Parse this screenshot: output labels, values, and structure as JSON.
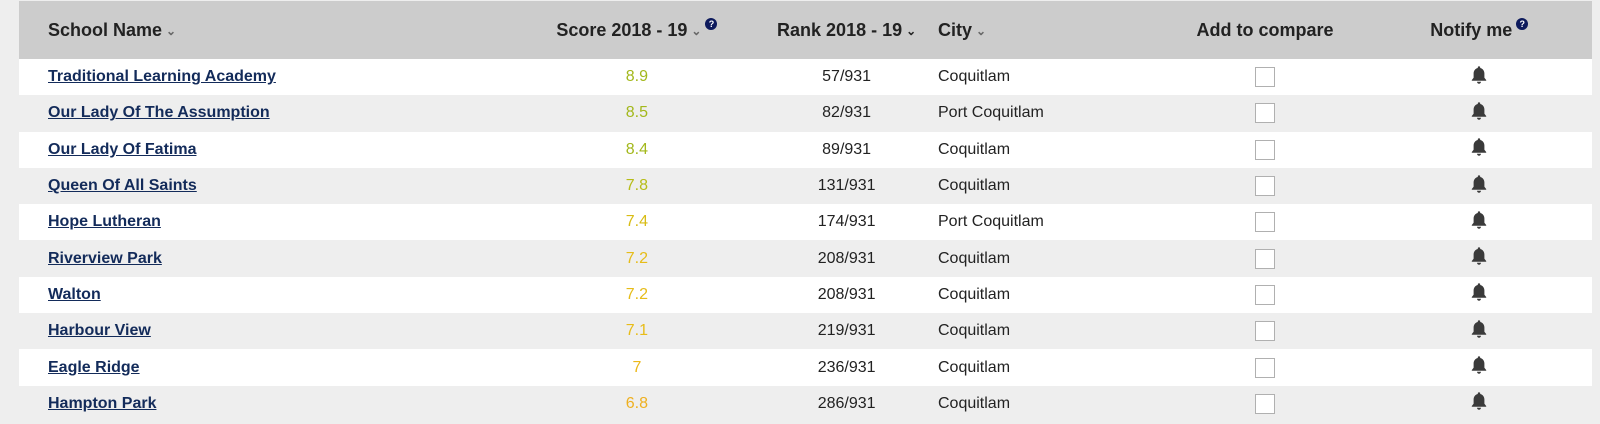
{
  "headers": {
    "school_name": "School Name",
    "score": "Score 2018 - 19",
    "rank": "Rank 2018 - 19",
    "city": "City",
    "compare": "Add to compare",
    "notify": "Notify me",
    "help_glyph": "?"
  },
  "icons": {
    "sort": "chevron-down-icon",
    "help": "question-circle-icon",
    "notify": "bell-icon",
    "compare": "checkbox-icon"
  },
  "colors": {
    "link": "#132b5a",
    "score_high": "#a0b820",
    "score_mid": "#e0b81a",
    "score_low": "#e8b020",
    "header_bg": "#cccccc"
  },
  "rows": [
    {
      "name": "Traditional Learning Academy",
      "score": "8.9",
      "score_color": "#a3b81c",
      "rank": "57/931",
      "city": "Coquitlam"
    },
    {
      "name": "Our Lady Of The Assumption",
      "score": "8.5",
      "score_color": "#a3b81c",
      "rank": "82/931",
      "city": "Port Coquitlam"
    },
    {
      "name": "Our Lady Of Fatima",
      "score": "8.4",
      "score_color": "#a3b81c",
      "rank": "89/931",
      "city": "Coquitlam"
    },
    {
      "name": "Queen Of All Saints",
      "score": "7.8",
      "score_color": "#b6bc18",
      "rank": "131/931",
      "city": "Coquitlam"
    },
    {
      "name": "Hope Lutheran",
      "score": "7.4",
      "score_color": "#d8bc14",
      "rank": "174/931",
      "city": "Port Coquitlam"
    },
    {
      "name": "Riverview Park",
      "score": "7.2",
      "score_color": "#e6bc18",
      "rank": "208/931",
      "city": "Coquitlam"
    },
    {
      "name": "Walton",
      "score": "7.2",
      "score_color": "#e6bc18",
      "rank": "208/931",
      "city": "Coquitlam"
    },
    {
      "name": "Harbour View",
      "score": "7.1",
      "score_color": "#e8bc18",
      "rank": "219/931",
      "city": "Coquitlam"
    },
    {
      "name": "Eagle Ridge",
      "score": "7",
      "score_color": "#ecb81a",
      "rank": "236/931",
      "city": "Coquitlam"
    },
    {
      "name": "Hampton Park",
      "score": "6.8",
      "score_color": "#eeb020",
      "rank": "286/931",
      "city": "Coquitlam"
    }
  ]
}
